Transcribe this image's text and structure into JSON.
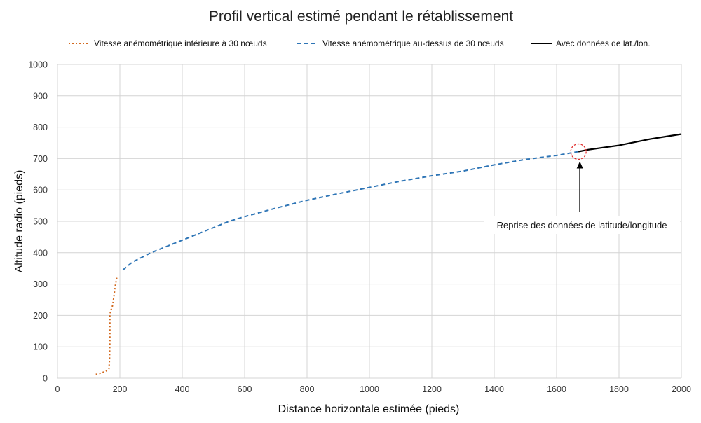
{
  "chart_data": {
    "type": "line",
    "title": "Profil vertical estimé pendant le rétablissement",
    "xlabel": "Distance horizontale estimée (pieds)",
    "ylabel": "Altitude radio (pieds)",
    "xlim": [
      0,
      2000
    ],
    "ylim": [
      0,
      1000
    ],
    "x_ticks": [
      0,
      200,
      400,
      600,
      800,
      1000,
      1200,
      1400,
      1600,
      1800,
      2000
    ],
    "y_ticks": [
      0,
      100,
      200,
      300,
      400,
      500,
      600,
      700,
      800,
      900,
      1000
    ],
    "grid": true,
    "legend_position": "top",
    "series": [
      {
        "name": "Vitesse anémométrique inférieure à 30 nœuds",
        "style": "dotted",
        "color": "#d2691e",
        "x": [
          123,
          135,
          150,
          160,
          165,
          167,
          168,
          168,
          170,
          175,
          178,
          182,
          186,
          190
        ],
        "y": [
          12,
          15,
          20,
          25,
          30,
          60,
          120,
          200,
          215,
          225,
          240,
          270,
          300,
          320
        ]
      },
      {
        "name": "Vitesse anémométrique au-dessus de 30 nœuds",
        "style": "dashed",
        "color": "#2e75b6",
        "x": [
          210,
          240,
          270,
          300,
          350,
          400,
          500,
          550,
          600,
          700,
          800,
          900,
          1000,
          1100,
          1200,
          1300,
          1400,
          1500,
          1600,
          1670
        ],
        "y": [
          345,
          370,
          385,
          400,
          420,
          440,
          480,
          500,
          515,
          542,
          567,
          588,
          608,
          628,
          645,
          660,
          680,
          697,
          710,
          722
        ]
      },
      {
        "name": "Avec données de lat./lon.",
        "style": "solid",
        "color": "#000000",
        "x": [
          1670,
          1700,
          1750,
          1800,
          1850,
          1900,
          1950,
          2000
        ],
        "y": [
          722,
          728,
          735,
          742,
          752,
          762,
          770,
          778
        ]
      }
    ],
    "annotation": {
      "text": "Reprise des données de latitude/longitude",
      "x": 1670,
      "y": 722,
      "marker_color": "#e03030"
    }
  }
}
